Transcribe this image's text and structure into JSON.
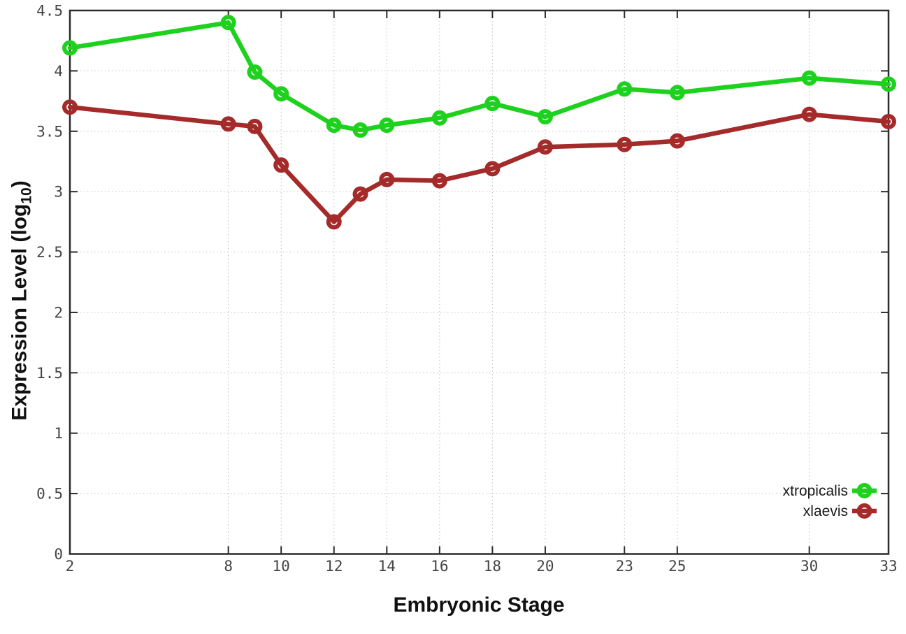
{
  "page": {
    "background": "#ffffff"
  },
  "labels": {
    "xlabel": "Embryonic Stage",
    "ylabel_main": "Expression Level (log",
    "ylabel_sub": "10",
    "ylabel_close": ")"
  },
  "colors": {
    "background": "#ffffff",
    "grid": "#bdbdbd",
    "axis": "#2b2b2b",
    "tick_label": "#444444",
    "title": "#111111",
    "legend_text": "#1a1a1a",
    "xtropicalis": "#1fd11f",
    "xlaevis": "#a52a2a"
  },
  "chart_data": {
    "type": "line",
    "title": "",
    "xlabel": "Embryonic Stage",
    "ylabel": "Expression Level (log10)",
    "x": [
      2,
      8,
      9,
      10,
      12,
      13,
      14,
      16,
      18,
      20,
      23,
      25,
      30,
      33
    ],
    "series": [
      {
        "name": "xtropicalis",
        "color": "#1fd11f",
        "marker": "open-circle",
        "values": [
          4.19,
          4.4,
          3.99,
          3.81,
          3.55,
          3.51,
          3.55,
          3.61,
          3.73,
          3.62,
          3.85,
          3.82,
          3.94,
          3.89
        ]
      },
      {
        "name": "xlaevis",
        "color": "#a52a2a",
        "marker": "open-circle",
        "values": [
          3.7,
          3.56,
          3.54,
          3.22,
          2.75,
          2.98,
          3.1,
          3.09,
          3.19,
          3.37,
          3.39,
          3.42,
          3.64,
          3.58
        ]
      }
    ],
    "xlim": [
      2,
      33
    ],
    "ylim": [
      0,
      4.5
    ],
    "x_ticks": [
      2,
      8,
      10,
      12,
      14,
      16,
      18,
      20,
      23,
      25,
      30,
      33
    ],
    "x_tick_labels": [
      "2",
      "8",
      "10",
      "12",
      "14",
      "16",
      "18",
      "20",
      "23",
      "25",
      "30",
      "33"
    ],
    "y_ticks": [
      0,
      0.5,
      1,
      1.5,
      2,
      2.5,
      3,
      3.5,
      4,
      4.5
    ],
    "y_tick_labels": [
      "0",
      "0.5",
      "1",
      "1.5",
      "2",
      "2.5",
      "3",
      "3.5",
      "4",
      "4.5"
    ],
    "grid": true,
    "grid_style": "dotted",
    "legend_position": "bottom-right-inside",
    "legend": [
      "xtropicalis",
      "xlaevis"
    ]
  }
}
